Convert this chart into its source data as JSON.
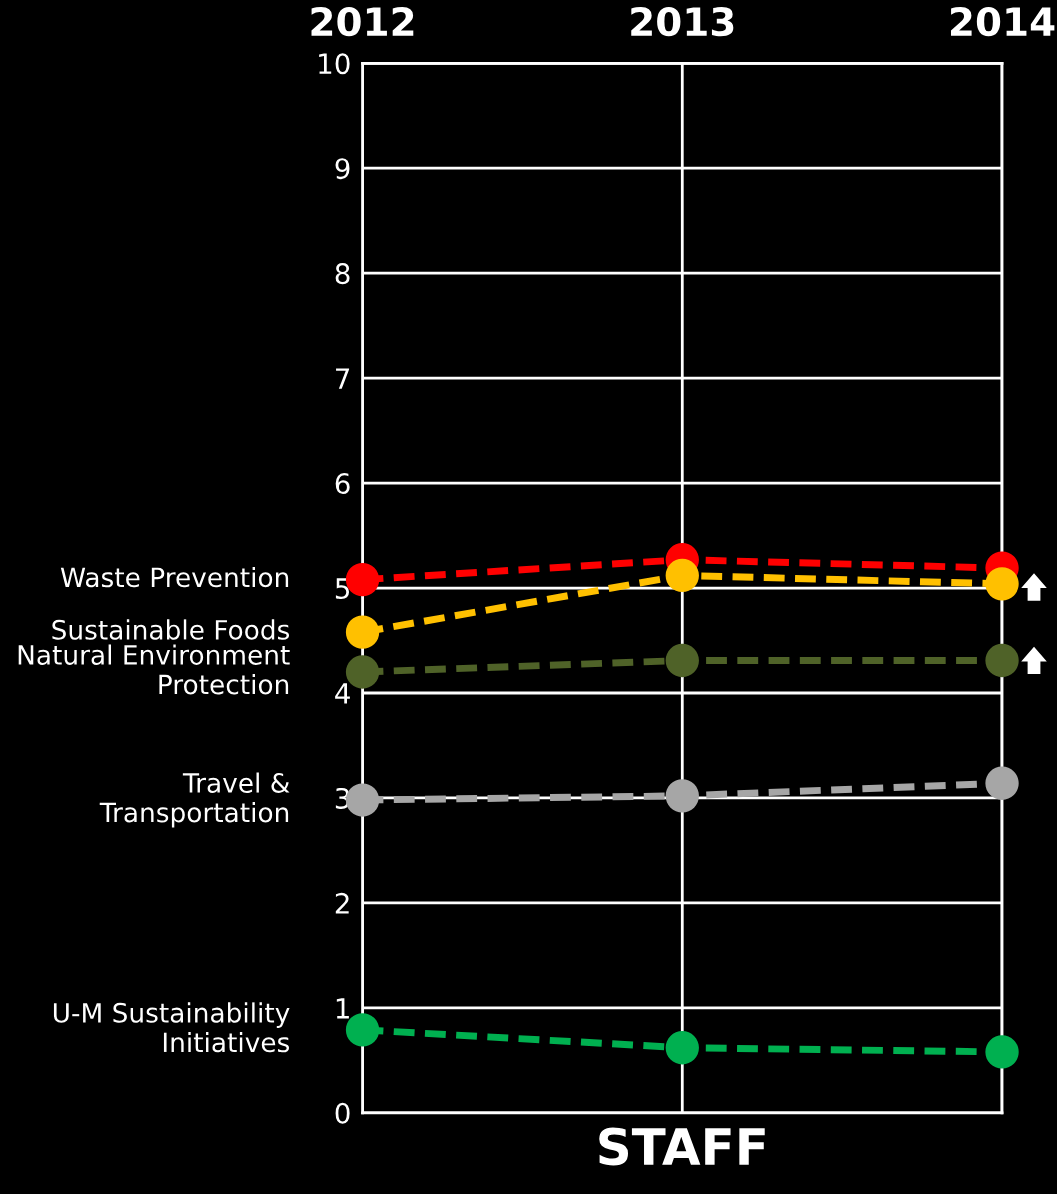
{
  "chart_data": {
    "type": "line",
    "xlabel": "STAFF",
    "categories": [
      "2012",
      "2013",
      "2014"
    ],
    "ylim": [
      0,
      10
    ],
    "yticks": [
      0,
      1,
      2,
      3,
      4,
      5,
      6,
      7,
      8,
      9,
      10
    ],
    "grid": true,
    "marker": "circle",
    "line_style": "dashed",
    "legend": false,
    "series": [
      {
        "name": "Waste Prevention",
        "color": "#ff0000",
        "values": [
          5.08,
          5.27,
          5.19
        ]
      },
      {
        "name": "Sustainable Foods",
        "color": "#ffc000",
        "values": [
          4.58,
          5.12,
          5.04
        ]
      },
      {
        "name": "Natural Environment\nProtection",
        "color": "#4f6228",
        "values": [
          4.2,
          4.31,
          4.31
        ]
      },
      {
        "name": "Travel &\nTransportation",
        "color": "#a6a6a6",
        "values": [
          2.98,
          3.02,
          3.14
        ]
      },
      {
        "name": "U-M Sustainability\nInitiatives",
        "color": "#00b050",
        "values": [
          0.79,
          0.62,
          0.58
        ]
      }
    ]
  }
}
